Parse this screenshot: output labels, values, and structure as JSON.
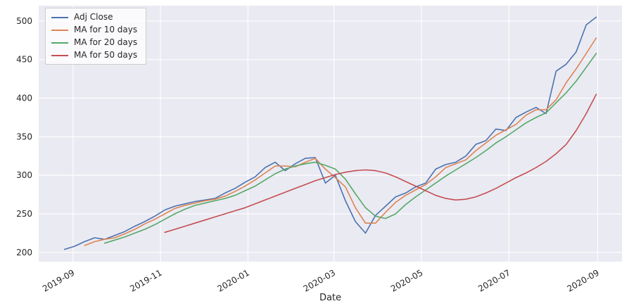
{
  "figure": {
    "background": "#ffffff",
    "plot_background": "#eaeaf2",
    "grid_color": "#ffffff",
    "tick_color": "#262626"
  },
  "chart_data": {
    "type": "line",
    "title": "",
    "xlabel": "Date",
    "ylabel": "",
    "grid": true,
    "legend_position": "upper left",
    "xlim": [
      "2019-08-08",
      "2020-09-18"
    ],
    "ylim": [
      188,
      520
    ],
    "x_ticks": [
      {
        "label": "2019-09",
        "date": "2019-09-01"
      },
      {
        "label": "2019-11",
        "date": "2019-11-01"
      },
      {
        "label": "2020-01",
        "date": "2020-01-01"
      },
      {
        "label": "2020-03",
        "date": "2020-03-01"
      },
      {
        "label": "2020-05",
        "date": "2020-05-01"
      },
      {
        "label": "2020-07",
        "date": "2020-07-01"
      },
      {
        "label": "2020-09",
        "date": "2020-09-01"
      }
    ],
    "y_ticks": [
      200,
      250,
      300,
      350,
      400,
      450,
      500
    ],
    "x": [
      "2019-08-26",
      "2019-09-02",
      "2019-09-09",
      "2019-09-16",
      "2019-09-23",
      "2019-09-30",
      "2019-10-07",
      "2019-10-14",
      "2019-10-21",
      "2019-10-28",
      "2019-11-04",
      "2019-11-11",
      "2019-11-18",
      "2019-11-25",
      "2019-12-02",
      "2019-12-09",
      "2019-12-16",
      "2019-12-23",
      "2019-12-30",
      "2020-01-06",
      "2020-01-13",
      "2020-01-20",
      "2020-01-27",
      "2020-02-03",
      "2020-02-10",
      "2020-02-17",
      "2020-02-24",
      "2020-03-02",
      "2020-03-09",
      "2020-03-16",
      "2020-03-23",
      "2020-03-30",
      "2020-04-06",
      "2020-04-13",
      "2020-04-20",
      "2020-04-27",
      "2020-05-04",
      "2020-05-11",
      "2020-05-18",
      "2020-05-25",
      "2020-06-01",
      "2020-06-08",
      "2020-06-15",
      "2020-06-22",
      "2020-06-29",
      "2020-07-06",
      "2020-07-13",
      "2020-07-20",
      "2020-07-27",
      "2020-08-03",
      "2020-08-10",
      "2020-08-17",
      "2020-08-24",
      "2020-08-31"
    ],
    "series": [
      {
        "name": "Adj Close",
        "color": "#4c72b0",
        "values": [
          204,
          208,
          214,
          219,
          217,
          222,
          227,
          234,
          240,
          247,
          255,
          260,
          263,
          266,
          268,
          270,
          277,
          283,
          291,
          298,
          310,
          317,
          306,
          315,
          322,
          323,
          290,
          300,
          267,
          240,
          225,
          248,
          260,
          272,
          277,
          285,
          290,
          308,
          314,
          317,
          325,
          340,
          345,
          360,
          358,
          375,
          382,
          388,
          380,
          435,
          444,
          460,
          495,
          505
        ]
      },
      {
        "name": "MA for 10 days",
        "color": "#dd8452",
        "values": [
          null,
          null,
          209,
          214,
          217,
          219,
          224,
          230,
          237,
          243,
          250,
          257,
          261,
          264,
          267,
          269,
          273,
          279,
          286,
          294,
          303,
          312,
          312,
          311,
          317,
          322,
          308,
          297,
          285,
          258,
          238,
          238,
          252,
          265,
          274,
          281,
          288,
          298,
          310,
          315,
          320,
          332,
          342,
          352,
          359,
          366,
          378,
          385,
          385,
          398,
          420,
          438,
          458,
          478
        ]
      },
      {
        "name": "MA for 20 days",
        "color": "#55a868",
        "values": [
          null,
          null,
          null,
          null,
          212,
          216,
          220,
          225,
          230,
          236,
          243,
          250,
          256,
          261,
          264,
          267,
          270,
          274,
          280,
          286,
          294,
          302,
          308,
          312,
          315,
          317,
          313,
          308,
          295,
          276,
          258,
          247,
          244,
          250,
          262,
          272,
          281,
          290,
          299,
          307,
          315,
          323,
          332,
          342,
          350,
          359,
          368,
          375,
          381,
          394,
          407,
          422,
          440,
          458
        ]
      },
      {
        "name": "MA for 50 days",
        "color": "#c44e52",
        "values": [
          null,
          null,
          null,
          null,
          null,
          null,
          null,
          null,
          null,
          null,
          226,
          230,
          234,
          238,
          242,
          246,
          250,
          254,
          258,
          263,
          268,
          273,
          278,
          283,
          288,
          293,
          297,
          301,
          304,
          306,
          307,
          306,
          303,
          298,
          292,
          286,
          280,
          274,
          270,
          268,
          269,
          272,
          277,
          283,
          290,
          297,
          303,
          310,
          318,
          328,
          340,
          358,
          380,
          405
        ]
      }
    ]
  }
}
